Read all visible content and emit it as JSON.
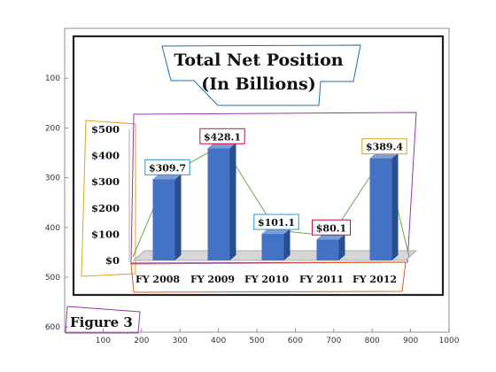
{
  "chart_data": {
    "type": "bar",
    "title": "Total Net Position",
    "subtitle": "(In Billions)",
    "categories": [
      "FY 2008",
      "FY 2009",
      "FY 2010",
      "FY 2011",
      "FY 2012"
    ],
    "values": [
      309.7,
      428.1,
      101.1,
      80.1,
      389.4
    ],
    "data_labels": [
      "$309.7",
      "$428.1",
      "$101.1",
      "$80.1",
      "$389.4"
    ],
    "y_tick_labels": [
      "$0",
      "$100",
      "$200",
      "$300",
      "$400",
      "$500"
    ],
    "y_ticks": [
      0,
      100,
      200,
      300,
      400,
      500
    ],
    "ylim": [
      0,
      500
    ],
    "grid": false,
    "legend": "none",
    "bar_color": "#4472c4"
  },
  "figure_label": "Figure 3",
  "image_axes": {
    "x_ticks": [
      "100",
      "200",
      "300",
      "400",
      "500",
      "600",
      "700",
      "800",
      "900",
      "1000"
    ],
    "y_ticks": [
      "100",
      "200",
      "300",
      "400",
      "500",
      "600"
    ]
  },
  "annotation_colors": {
    "title": "#1f6fa8",
    "y_axis_labels": "#e0a020",
    "plot_area": "#8e3aa6",
    "x_axis_labels": "#e05a1a",
    "connector_line": "#6aa64a"
  }
}
